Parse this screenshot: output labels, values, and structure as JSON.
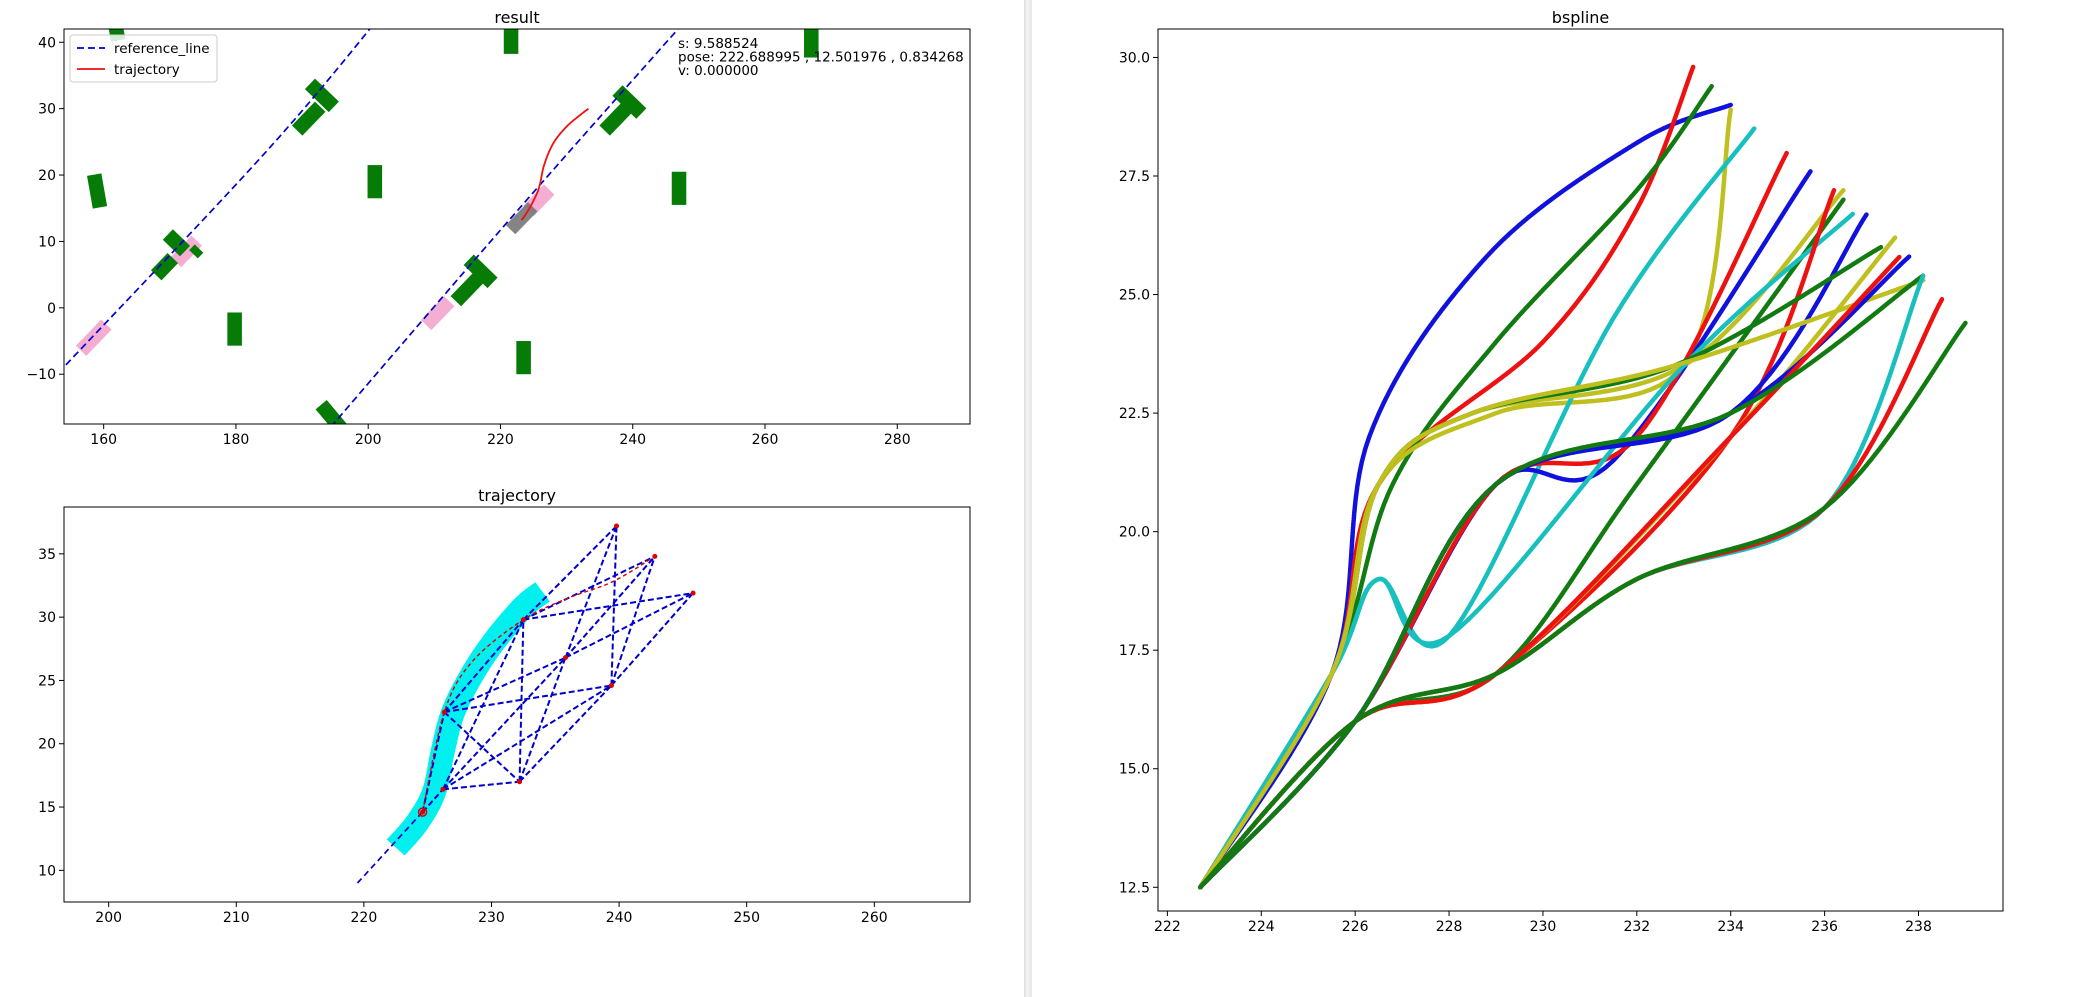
{
  "chart_data": [
    {
      "type": "scatter",
      "title": "result",
      "xlabel": "",
      "ylabel": "",
      "xlim": [
        154,
        291
      ],
      "ylim": [
        -17.5,
        42
      ],
      "xticks": [
        160,
        180,
        200,
        220,
        240,
        260,
        280
      ],
      "yticks": [
        -10,
        0,
        10,
        20,
        30,
        40
      ],
      "legend": {
        "position": "top-left",
        "entries": [
          "reference_line",
          "trajectory"
        ]
      },
      "annotations": [
        "s: 9.588524",
        "pose:  222.688995 , 12.501976 , 0.834268",
        "v: 0.000000"
      ],
      "colors": {
        "reference_line": "#0000cc",
        "trajectory": "#ee1111",
        "obstacle": "#067c06",
        "ego": "#777777",
        "footprint": "#f2aad0"
      },
      "series": [
        {
          "name": "reference_line",
          "segments": [
            [
              [
                152,
                -11
              ],
              [
                185,
                24
              ],
              [
                203.5,
                46
              ]
            ],
            [
              [
                190,
                -23
              ],
              [
                222,
                14
              ],
              [
                254,
                50
              ]
            ]
          ]
        },
        {
          "name": "trajectory",
          "x": [
            223.2,
            224.5,
            225.8,
            226.6,
            228.0,
            230.0,
            232.0,
            233.3
          ],
          "y": [
            13.2,
            15.2,
            18.0,
            21.5,
            24.8,
            27.3,
            29.0,
            30.0
          ]
        }
      ],
      "obstacles": [
        {
          "x": 161.8,
          "y": 42.5,
          "w": 2.2,
          "h": 4.5,
          "angle": -10
        },
        {
          "x": 221.6,
          "y": 40.5,
          "w": 2.2,
          "h": 4.5,
          "angle": 0
        },
        {
          "x": 267.0,
          "y": 40.2,
          "w": 2.2,
          "h": 5.0,
          "angle": 0
        },
        {
          "x": 159.0,
          "y": 17.6,
          "w": 2.2,
          "h": 5.0,
          "angle": -10
        },
        {
          "x": 201.0,
          "y": 19.0,
          "w": 2.2,
          "h": 5.0,
          "angle": 0
        },
        {
          "x": 247.0,
          "y": 18.0,
          "w": 2.2,
          "h": 5.0,
          "angle": 0
        },
        {
          "x": 179.8,
          "y": -3.2,
          "w": 2.2,
          "h": 5.0,
          "angle": 0
        },
        {
          "x": 223.5,
          "y": -7.5,
          "w": 2.2,
          "h": 5.0,
          "angle": 0
        },
        {
          "x": 194.5,
          "y": -16.5,
          "w": 2.2,
          "h": 5.0,
          "angle": -40
        },
        {
          "x": 191.0,
          "y": 28.5,
          "w": 2.2,
          "h": 5.0,
          "angle": 44
        },
        {
          "x": 193.0,
          "y": 32.0,
          "w": 2.2,
          "h": 5.0,
          "angle": -46
        },
        {
          "x": 237.5,
          "y": 28.5,
          "w": 2.2,
          "h": 5.0,
          "angle": 44
        },
        {
          "x": 239.5,
          "y": 31.0,
          "w": 2.2,
          "h": 5.0,
          "angle": -46
        },
        {
          "x": 169.2,
          "y": 6.2,
          "w": 2.2,
          "h": 3.6,
          "angle": 44
        },
        {
          "x": 171.0,
          "y": 9.8,
          "w": 2.2,
          "h": 3.6,
          "angle": -46
        },
        {
          "x": 215.0,
          "y": 2.8,
          "w": 2.2,
          "h": 5.0,
          "angle": 44
        },
        {
          "x": 217.0,
          "y": 5.5,
          "w": 2.2,
          "h": 5.0,
          "angle": -46
        },
        {
          "x": 174.0,
          "y": 8.5,
          "w": 1.2,
          "h": 1.8,
          "angle": -46
        }
      ],
      "ego": {
        "x": 223.2,
        "y": 13.5,
        "w": 2.0,
        "h": 4.8,
        "angle": 44
      },
      "footprints": [
        {
          "x": 158.5,
          "y": -4.5,
          "w": 2.2,
          "h": 5.5,
          "angle": 44
        },
        {
          "x": 172.5,
          "y": 8.5,
          "w": 2.2,
          "h": 4.5,
          "angle": 44
        },
        {
          "x": 210.5,
          "y": -0.8,
          "w": 2.2,
          "h": 5.0,
          "angle": 44
        },
        {
          "x": 225.8,
          "y": 16.2,
          "w": 2.2,
          "h": 4.5,
          "angle": 44
        }
      ]
    },
    {
      "type": "line",
      "title": "trajectory",
      "xlabel": "",
      "ylabel": "",
      "xlim": [
        196.5,
        267.5
      ],
      "ylim": [
        7.5,
        38.7
      ],
      "xticks": [
        200,
        210,
        220,
        230,
        240,
        250,
        260
      ],
      "yticks": [
        10,
        15,
        20,
        25,
        30,
        35
      ],
      "colors": {
        "lattice": "#0000cc",
        "corridor": "#00f0f0",
        "path": "#dd0000"
      },
      "corridor": {
        "x": [
          222.5,
          224.2,
          225.5,
          226.2,
          227.0,
          228.5,
          230.3,
          232.5,
          234.0
        ],
        "y": [
          11.8,
          13.8,
          16.2,
          19.5,
          22.5,
          25.5,
          28.2,
          30.8,
          32.0
        ]
      },
      "reference_line": {
        "x": [
          219.5,
          224.5
        ],
        "y": [
          9.0,
          14.5
        ]
      },
      "nodes": [
        {
          "x": 224.6,
          "y": 14.6
        },
        {
          "x": 226.2,
          "y": 16.4
        },
        {
          "x": 226.3,
          "y": 22.5
        },
        {
          "x": 232.2,
          "y": 17.0
        },
        {
          "x": 232.5,
          "y": 29.8
        },
        {
          "x": 235.8,
          "y": 26.8
        },
        {
          "x": 239.4,
          "y": 24.6
        },
        {
          "x": 239.8,
          "y": 37.2
        },
        {
          "x": 242.8,
          "y": 34.8
        },
        {
          "x": 245.8,
          "y": 31.9
        }
      ],
      "edges": [
        [
          0,
          1
        ],
        [
          0,
          2
        ],
        [
          1,
          3
        ],
        [
          1,
          4
        ],
        [
          1,
          5
        ],
        [
          1,
          6
        ],
        [
          2,
          3
        ],
        [
          2,
          4
        ],
        [
          2,
          5
        ],
        [
          2,
          6
        ],
        [
          3,
          4
        ],
        [
          3,
          5
        ],
        [
          3,
          6
        ],
        [
          4,
          7
        ],
        [
          4,
          8
        ],
        [
          4,
          9
        ],
        [
          5,
          7
        ],
        [
          5,
          8
        ],
        [
          5,
          9
        ],
        [
          6,
          7
        ],
        [
          6,
          8
        ],
        [
          6,
          9
        ]
      ],
      "path": {
        "x": [
          224.6,
          226.3,
          228.5,
          232.5,
          236.0,
          239.5,
          242.8
        ],
        "y": [
          14.6,
          22.5,
          26.5,
          29.8,
          31.5,
          32.8,
          34.8
        ]
      }
    },
    {
      "type": "scatter",
      "title": "bspline",
      "xlabel": "",
      "ylabel": "",
      "xlim": [
        221.8,
        239.8
      ],
      "ylim": [
        12.0,
        30.6
      ],
      "xticks": [
        222,
        224,
        226,
        228,
        230,
        232,
        234,
        236,
        238
      ],
      "yticks": [
        12.5,
        15.0,
        17.5,
        20.0,
        22.5,
        25.0,
        27.5,
        30.0
      ],
      "colors": {
        "b": "#1111dd",
        "r": "#ee1111",
        "y": "#bfbf1f",
        "g": "#117a11",
        "c": "#17bfbf"
      },
      "series": [
        {
          "color": "b",
          "x": [
            222.7,
            225.5,
            226.3,
            228.8,
            232.0,
            234.0
          ],
          "y": [
            12.5,
            17.0,
            22.0,
            25.8,
            28.2,
            29.0
          ]
        },
        {
          "color": "r",
          "x": [
            222.7,
            225.5,
            226.5,
            230.0,
            232.0,
            233.2
          ],
          "y": [
            12.5,
            17.0,
            21.0,
            24.0,
            26.8,
            29.8
          ]
        },
        {
          "color": "g",
          "x": [
            222.7,
            225.5,
            226.8,
            229.0,
            232.0,
            233.6
          ],
          "y": [
            12.5,
            17.0,
            21.0,
            24.0,
            27.2,
            29.4
          ]
        },
        {
          "color": "y",
          "x": [
            222.7,
            225.5,
            226.5,
            229.0,
            233.0,
            234.0
          ],
          "y": [
            12.5,
            17.0,
            21.0,
            22.5,
            23.5,
            28.9
          ]
        },
        {
          "color": "c",
          "x": [
            222.7,
            225.5,
            226.5,
            228.0,
            231.5,
            234.5
          ],
          "y": [
            12.5,
            17.0,
            19.0,
            17.8,
            24.5,
            28.5
          ]
        },
        {
          "color": "b",
          "x": [
            222.7,
            226.0,
            229.0,
            231.5,
            235.7
          ],
          "y": [
            12.5,
            16.0,
            21.0,
            21.5,
            27.6
          ]
        },
        {
          "color": "r",
          "x": [
            222.7,
            226.0,
            229.0,
            232.0,
            235.2
          ],
          "y": [
            12.5,
            16.0,
            21.0,
            22.0,
            28.0
          ]
        },
        {
          "color": "y",
          "x": [
            222.7,
            225.5,
            226.5,
            228.5,
            233.0,
            236.4
          ],
          "y": [
            12.5,
            17.0,
            21.0,
            22.5,
            23.5,
            27.2
          ]
        },
        {
          "color": "g",
          "x": [
            222.7,
            226.0,
            229.0,
            232.0,
            236.4
          ],
          "y": [
            12.5,
            16.0,
            17.0,
            21.0,
            27.0
          ]
        },
        {
          "color": "c",
          "x": [
            222.7,
            225.5,
            226.5,
            228.0,
            233.0,
            236.6
          ],
          "y": [
            12.5,
            17.0,
            19.0,
            17.8,
            23.5,
            26.7
          ]
        },
        {
          "color": "r",
          "x": [
            222.7,
            226.0,
            229.0,
            234.0,
            236.2
          ],
          "y": [
            12.5,
            16.0,
            17.0,
            22.0,
            27.2
          ]
        },
        {
          "color": "b",
          "x": [
            222.7,
            226.0,
            229.0,
            234.0,
            236.9
          ],
          "y": [
            12.5,
            16.0,
            21.0,
            22.5,
            26.7
          ]
        },
        {
          "color": "y",
          "x": [
            222.7,
            226.0,
            229.0,
            234.0,
            237.5
          ],
          "y": [
            12.5,
            16.0,
            17.0,
            22.0,
            26.2
          ]
        },
        {
          "color": "g",
          "x": [
            222.7,
            225.5,
            226.5,
            228.5,
            232.8,
            237.2
          ],
          "y": [
            12.5,
            17.0,
            21.0,
            22.5,
            23.5,
            26.0
          ]
        },
        {
          "color": "y",
          "x": [
            222.7,
            225.5,
            226.5,
            228.5,
            232.8,
            238.1
          ],
          "y": [
            12.5,
            17.0,
            21.0,
            22.5,
            23.5,
            25.3
          ]
        },
        {
          "color": "b",
          "x": [
            222.7,
            226.0,
            229.0,
            234.0,
            237.8
          ],
          "y": [
            12.5,
            16.0,
            21.0,
            22.5,
            25.8
          ]
        },
        {
          "color": "r",
          "x": [
            222.7,
            226.0,
            229.0,
            234.0,
            237.6
          ],
          "y": [
            12.5,
            16.0,
            17.0,
            22.0,
            25.8
          ]
        },
        {
          "color": "g",
          "x": [
            222.7,
            226.0,
            229.0,
            234.0,
            238.1
          ],
          "y": [
            12.5,
            16.0,
            21.0,
            22.5,
            25.4
          ]
        },
        {
          "color": "c",
          "x": [
            222.7,
            226.0,
            229.0,
            232.0,
            236.0,
            238.1
          ],
          "y": [
            12.5,
            16.0,
            17.0,
            19.0,
            20.5,
            25.4
          ]
        },
        {
          "color": "r",
          "x": [
            222.7,
            226.0,
            229.0,
            232.0,
            236.0,
            238.5
          ],
          "y": [
            12.5,
            16.0,
            17.0,
            19.0,
            20.5,
            24.9
          ]
        },
        {
          "color": "g",
          "x": [
            222.7,
            226.0,
            229.0,
            232.0,
            236.0,
            239.0
          ],
          "y": [
            12.5,
            16.0,
            17.0,
            19.0,
            20.5,
            24.4
          ]
        }
      ]
    }
  ]
}
